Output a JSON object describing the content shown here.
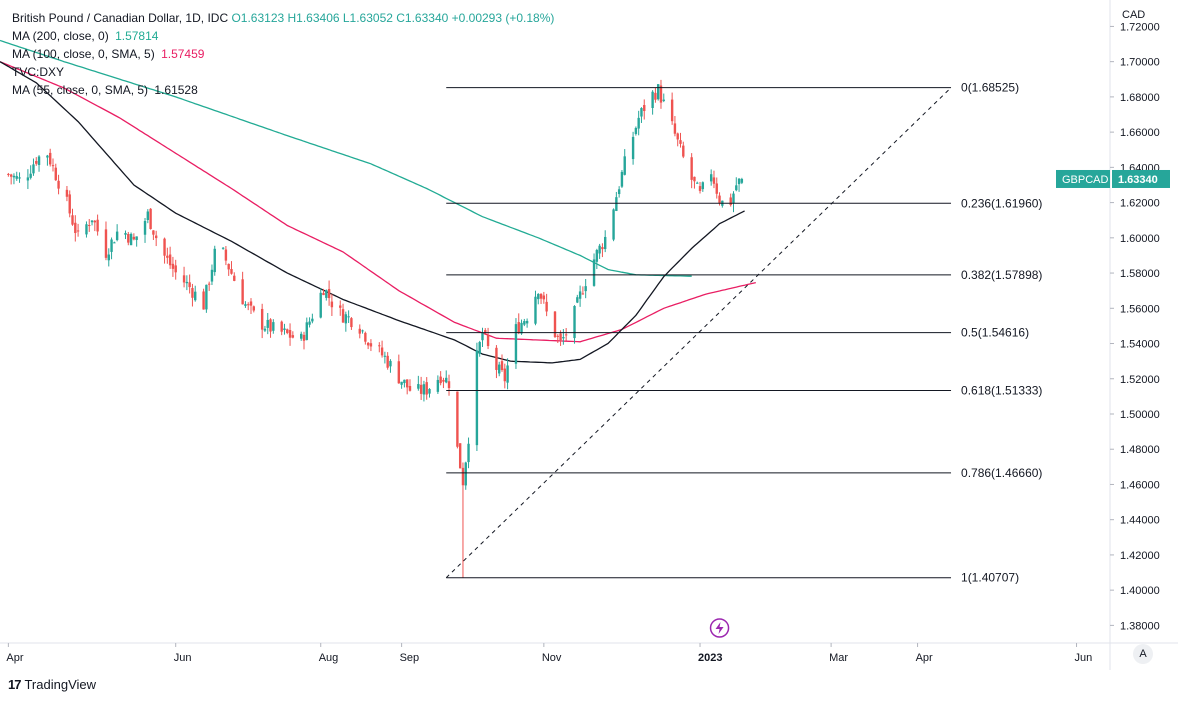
{
  "legend": {
    "main": "British Pound / Canadian Dollar, 1D, IDC",
    "ohlc": "O1.63123  H1.63406  L1.63052  C1.63340  +0.00293  (+0.18%)",
    "ma200_label": "MA (200, close, 0)",
    "ma200_value": "1.57814",
    "ma100_label": "MA (100, close, 0, SMA, 5)",
    "ma100_value": "1.57459",
    "dxy_label": "TVC:DXY",
    "ma55_label": "MA (55, close, 0, SMA, 5)",
    "ma55_value": "1.61528"
  },
  "currency_unit": "CAD",
  "price_tag": {
    "symbol": "GBPCAD",
    "value": "1.63340",
    "color": "#26a69a"
  },
  "auto_label": "A",
  "footer": {
    "logo": "17",
    "brand": "TradingView"
  },
  "colors": {
    "up": "#26a69a",
    "down": "#ef5350",
    "ma200": "#22ab94",
    "ma100": "#e91e63",
    "ma55": "#131722",
    "fib": "#131722"
  },
  "chart_data": {
    "type": "candlestick",
    "title": "British Pound / Canadian Dollar, 1D, IDC",
    "ylabel": "CAD",
    "ylim": [
      1.37,
      1.735
    ],
    "y_ticks": [
      "1.72000",
      "1.70000",
      "1.68000",
      "1.66000",
      "1.64000",
      "1.62000",
      "1.60000",
      "1.58000",
      "1.56000",
      "1.54000",
      "1.52000",
      "1.50000",
      "1.48000",
      "1.46000",
      "1.44000",
      "1.42000",
      "1.40000",
      "1.38000"
    ],
    "y_tick_values": [
      1.72,
      1.7,
      1.68,
      1.66,
      1.64,
      1.62,
      1.6,
      1.58,
      1.56,
      1.54,
      1.52,
      1.5,
      1.48,
      1.46,
      1.44,
      1.42,
      1.4,
      1.38
    ],
    "x_ticks": [
      "Apr",
      "Jun",
      "Aug",
      "Sep",
      "Nov",
      "2023",
      "Mar",
      "Apr",
      "Jun"
    ],
    "x_tick_days": [
      0,
      60,
      112,
      141,
      192,
      248,
      295,
      326,
      383
    ],
    "x_range_days": [
      -3,
      395
    ],
    "close_anchors": [
      [
        0,
        1.636
      ],
      [
        5,
        1.632
      ],
      [
        10,
        1.645
      ],
      [
        14,
        1.648
      ],
      [
        20,
        1.624
      ],
      [
        25,
        1.6
      ],
      [
        30,
        1.612
      ],
      [
        35,
        1.592
      ],
      [
        40,
        1.606
      ],
      [
        45,
        1.598
      ],
      [
        50,
        1.613
      ],
      [
        55,
        1.592
      ],
      [
        60,
        1.58
      ],
      [
        65,
        1.572
      ],
      [
        70,
        1.562
      ],
      [
        75,
        1.598
      ],
      [
        80,
        1.58
      ],
      [
        85,
        1.562
      ],
      [
        90,
        1.552
      ],
      [
        95,
        1.548
      ],
      [
        100,
        1.545
      ],
      [
        105,
        1.542
      ],
      [
        110,
        1.56
      ],
      [
        113,
        1.572
      ],
      [
        118,
        1.558
      ],
      [
        125,
        1.552
      ],
      [
        130,
        1.54
      ],
      [
        135,
        1.532
      ],
      [
        140,
        1.521
      ],
      [
        145,
        1.512
      ],
      [
        150,
        1.514
      ],
      [
        155,
        1.522
      ],
      [
        158,
        1.518
      ],
      [
        161,
        1.48
      ],
      [
        163,
        1.462
      ],
      [
        166,
        1.5
      ],
      [
        168,
        1.532
      ],
      [
        170,
        1.546
      ],
      [
        174,
        1.528
      ],
      [
        178,
        1.52
      ],
      [
        182,
        1.548
      ],
      [
        186,
        1.556
      ],
      [
        190,
        1.572
      ],
      [
        194,
        1.552
      ],
      [
        198,
        1.54
      ],
      [
        202,
        1.552
      ],
      [
        206,
        1.572
      ],
      [
        210,
        1.588
      ],
      [
        214,
        1.6
      ],
      [
        218,
        1.624
      ],
      [
        222,
        1.648
      ],
      [
        226,
        1.668
      ],
      [
        230,
        1.68
      ],
      [
        233,
        1.684
      ],
      [
        236,
        1.672
      ],
      [
        240,
        1.654
      ],
      [
        244,
        1.636
      ],
      [
        248,
        1.624
      ],
      [
        252,
        1.638
      ],
      [
        255,
        1.622
      ],
      [
        258,
        1.616
      ],
      [
        261,
        1.63
      ],
      [
        263,
        1.6334
      ]
    ],
    "fib_levels": [
      {
        "label": "0(1.68525)",
        "value": 1.68525
      },
      {
        "label": "0.236(1.61960)",
        "value": 1.6196
      },
      {
        "label": "0.382(1.57898)",
        "value": 1.57898
      },
      {
        "label": "0.5(1.54616)",
        "value": 1.54616
      },
      {
        "label": "0.618(1.51333)",
        "value": 1.51333
      },
      {
        "label": "0.786(1.46660)",
        "value": 1.4666
      },
      {
        "label": "1(1.40707)",
        "value": 1.40707
      }
    ],
    "fib_x_days": [
      157,
      338
    ],
    "trend_line": {
      "from": [
        157,
        1.40707
      ],
      "to": [
        338,
        1.68525
      ],
      "style": "dashed"
    },
    "ma200": {
      "name": "MA (200, close, 0)",
      "anchors": [
        [
          -3,
          1.712
        ],
        [
          20,
          1.7
        ],
        [
          60,
          1.68
        ],
        [
          100,
          1.658
        ],
        [
          130,
          1.642
        ],
        [
          150,
          1.628
        ],
        [
          170,
          1.612
        ],
        [
          190,
          1.6
        ],
        [
          205,
          1.59
        ],
        [
          215,
          1.582
        ],
        [
          225,
          1.579
        ],
        [
          245,
          1.5782
        ]
      ]
    },
    "ma100": {
      "name": "MA (100, close, 0, SMA, 5)",
      "anchors": [
        [
          -3,
          1.7
        ],
        [
          20,
          1.685
        ],
        [
          40,
          1.668
        ],
        [
          60,
          1.648
        ],
        [
          80,
          1.628
        ],
        [
          100,
          1.607
        ],
        [
          120,
          1.592
        ],
        [
          140,
          1.57
        ],
        [
          160,
          1.552
        ],
        [
          175,
          1.543
        ],
        [
          190,
          1.542
        ],
        [
          205,
          1.541
        ],
        [
          220,
          1.548
        ],
        [
          235,
          1.56
        ],
        [
          250,
          1.568
        ],
        [
          268,
          1.5746
        ]
      ]
    },
    "ma55": {
      "name": "MA (55, close, 0, SMA, 5)",
      "anchors": [
        [
          -3,
          1.7
        ],
        [
          10,
          1.688
        ],
        [
          25,
          1.666
        ],
        [
          45,
          1.63
        ],
        [
          60,
          1.614
        ],
        [
          80,
          1.598
        ],
        [
          100,
          1.58
        ],
        [
          120,
          1.565
        ],
        [
          140,
          1.553
        ],
        [
          160,
          1.542
        ],
        [
          170,
          1.534
        ],
        [
          180,
          1.53
        ],
        [
          195,
          1.529
        ],
        [
          205,
          1.531
        ],
        [
          215,
          1.54
        ],
        [
          225,
          1.556
        ],
        [
          235,
          1.578
        ],
        [
          245,
          1.594
        ],
        [
          255,
          1.608
        ],
        [
          264,
          1.6153
        ]
      ]
    }
  }
}
